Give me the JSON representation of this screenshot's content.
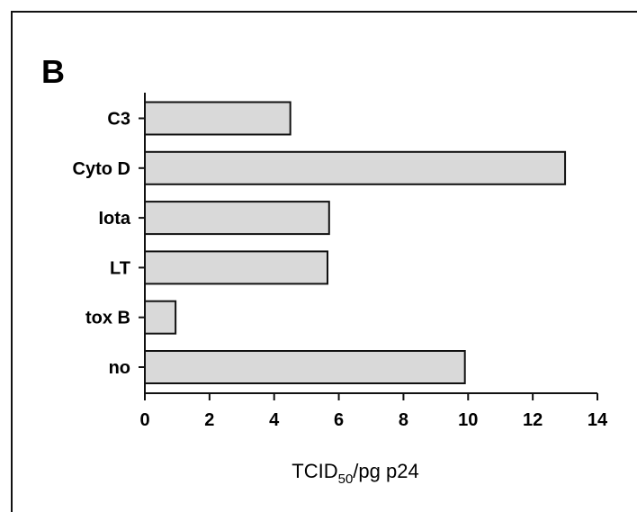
{
  "figure": {
    "panel_label": "B"
  },
  "chart_data": {
    "type": "bar",
    "orientation": "horizontal",
    "categories": [
      "C3",
      "Cyto D",
      "Iota",
      "LT",
      "tox B",
      "no"
    ],
    "values": [
      4.5,
      13.0,
      5.7,
      5.65,
      0.95,
      9.9
    ],
    "xlabel": "TCID50/pg p24",
    "xlabel_parts": {
      "main": "TCID",
      "sub": "50",
      "rest": "/pg p24"
    },
    "ylabel": "",
    "xlim": [
      0,
      14
    ],
    "xticks": [
      0,
      2,
      4,
      6,
      8,
      10,
      12,
      14
    ],
    "grid": false,
    "bar_color": "#d9d9d9",
    "bar_edge_color": "#111111"
  }
}
